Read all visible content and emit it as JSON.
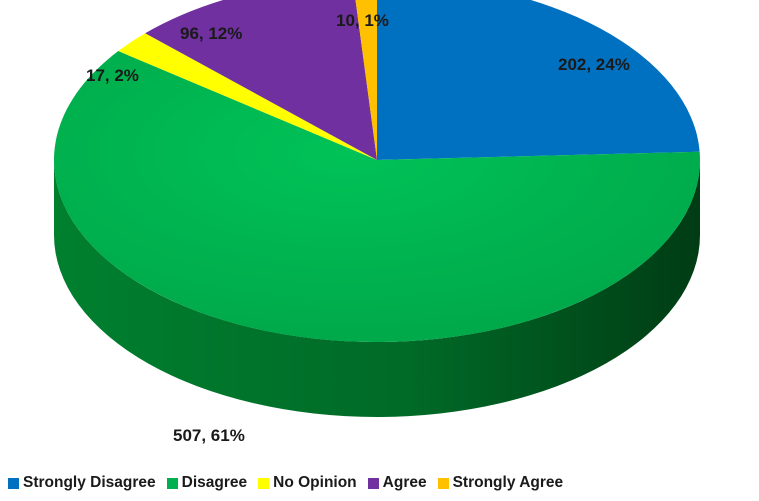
{
  "chart_data": {
    "type": "pie",
    "style": "3d",
    "title": "",
    "categories": [
      "Strongly Disagree",
      "Disagree",
      "No Opinion",
      "Agree",
      "Strongly Agree"
    ],
    "values": [
      202,
      507,
      17,
      96,
      10
    ],
    "percentages": [
      "24%",
      "61%",
      "2%",
      "12%",
      "1%"
    ],
    "data_labels": [
      "202, 24%",
      "507, 61%",
      "17, 2%",
      "96, 12%",
      "10, 1%"
    ],
    "colors": [
      "#0070c0",
      "#00b050",
      "#ffff00",
      "#7030a0",
      "#ffc000"
    ],
    "legend_position": "bottom"
  }
}
